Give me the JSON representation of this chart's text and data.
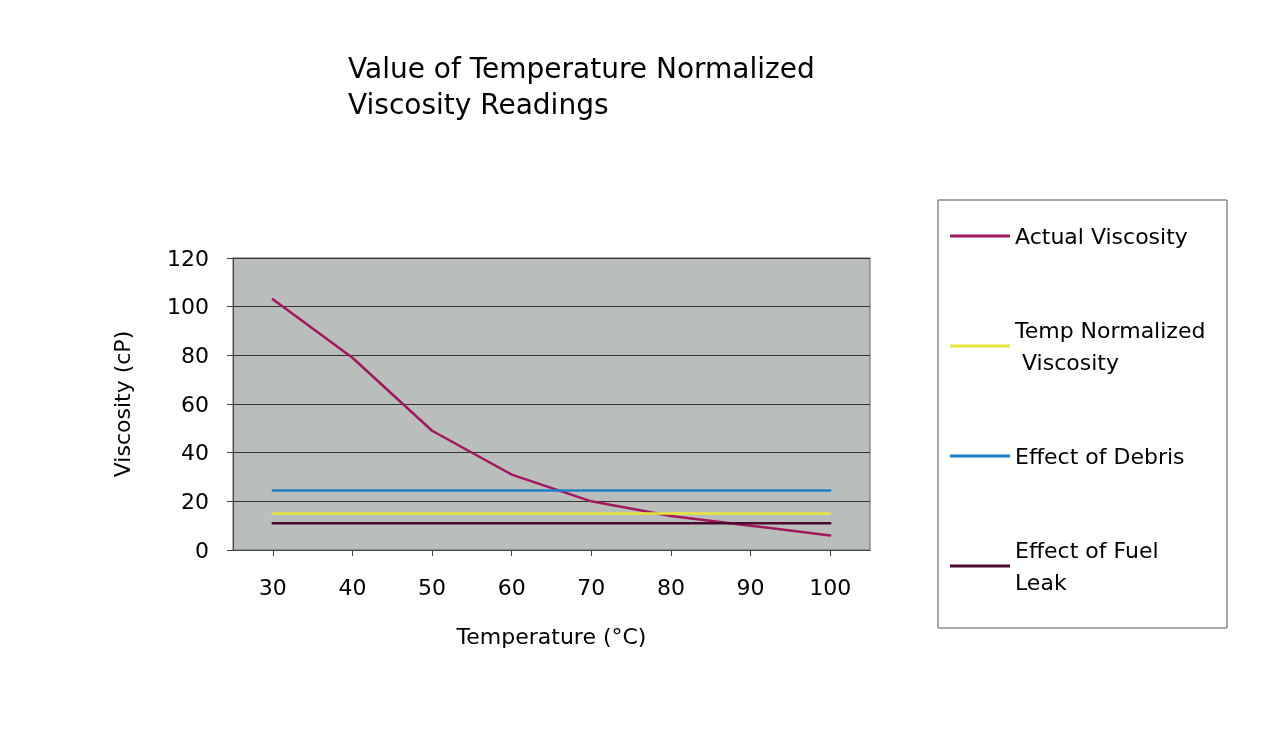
{
  "chart_data": {
    "type": "line",
    "title": "Value of Temperature Normalized\nViscosity Readings",
    "xlabel": "Temperature (°C)",
    "ylabel": "Viscosity (cP)",
    "x": [
      30,
      40,
      50,
      60,
      70,
      80,
      90,
      100
    ],
    "series": [
      {
        "name": "Actual Viscosity",
        "color": "#a0185e",
        "values": [
          103,
          79,
          49,
          31,
          20,
          14,
          10,
          6
        ]
      },
      {
        "name": "Temp Normalized Viscosity",
        "color": "#e6e63c",
        "values": [
          15,
          15,
          15,
          15,
          15,
          15,
          15,
          15
        ]
      },
      {
        "name": "Effect of Debris",
        "color": "#1f7fc6",
        "values": [
          24.5,
          24.5,
          24.5,
          24.5,
          24.5,
          24.5,
          24.5,
          24.5
        ]
      },
      {
        "name": "Effect of Fuel Leak",
        "color": "#4a0a2e",
        "values": [
          11,
          11,
          11,
          11,
          11,
          11,
          11,
          11
        ]
      }
    ],
    "xlim": [
      25,
      105
    ],
    "xticks": [
      30,
      40,
      50,
      60,
      70,
      80,
      90,
      100
    ],
    "ylim": [
      0,
      120
    ],
    "yticks": [
      0,
      20,
      40,
      60,
      80,
      100,
      120
    ],
    "grid": "y",
    "legend": "right",
    "marker": "none",
    "line_style": "solid"
  }
}
